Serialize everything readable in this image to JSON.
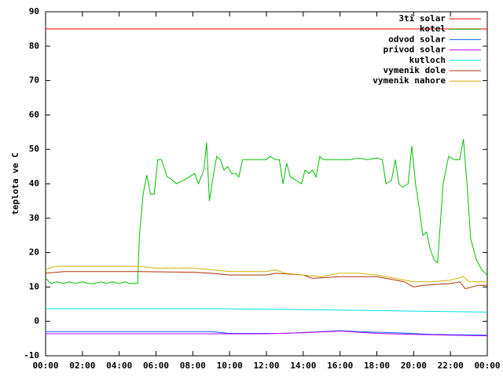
{
  "chart_data": {
    "type": "line",
    "y_label": "teplota ve C",
    "xlim": [
      0,
      24
    ],
    "xticks": [
      {
        "value": 0,
        "label": "00:00"
      },
      {
        "value": 2,
        "label": "02:00"
      },
      {
        "value": 4,
        "label": "04:00"
      },
      {
        "value": 6,
        "label": "06:00"
      },
      {
        "value": 8,
        "label": "08:00"
      },
      {
        "value": 10,
        "label": "10:00"
      },
      {
        "value": 12,
        "label": "12:00"
      },
      {
        "value": 14,
        "label": "14:00"
      },
      {
        "value": 16,
        "label": "16:00"
      },
      {
        "value": 18,
        "label": "18:00"
      },
      {
        "value": 20,
        "label": "20:00"
      },
      {
        "value": 22,
        "label": "22:00"
      },
      {
        "value": 24,
        "label": "00:00"
      }
    ],
    "ylim": [
      -10,
      90
    ],
    "yticks": [
      -10,
      0,
      10,
      20,
      30,
      40,
      50,
      60,
      70,
      80,
      90
    ],
    "legend": "top-right",
    "series": [
      {
        "name": "3ti solar",
        "color": "#ff0000",
        "x": [
          0,
          24
        ],
        "values": [
          85,
          85
        ]
      },
      {
        "name": "kotel",
        "color": "#00c000",
        "x": [
          0,
          0.3,
          0.6,
          1,
          1.3,
          1.6,
          2,
          2.3,
          2.6,
          3,
          3.3,
          3.6,
          4,
          4.3,
          4.6,
          5,
          5.1,
          5.3,
          5.5,
          5.7,
          5.9,
          6.1,
          6.3,
          6.6,
          6.8,
          7.1,
          7.5,
          7.8,
          8.1,
          8.3,
          8.6,
          8.75,
          8.9,
          9.1,
          9.3,
          9.5,
          9.7,
          9.9,
          10.1,
          10.3,
          10.5,
          10.7,
          11,
          11.5,
          12,
          12.2,
          12.5,
          12.7,
          12.9,
          13.1,
          13.3,
          13.6,
          13.9,
          14.1,
          14.3,
          14.5,
          14.7,
          14.9,
          15.1,
          15.5,
          16,
          16.5,
          17,
          17.5,
          18,
          18.3,
          18.5,
          18.8,
          19,
          19.2,
          19.4,
          19.7,
          19.9,
          20.1,
          20.3,
          20.5,
          20.7,
          20.9,
          21.1,
          21.3,
          21.6,
          21.9,
          22.2,
          22.5,
          22.7,
          22.9,
          23.1,
          23.4,
          23.7,
          24
        ],
        "values": [
          12.5,
          11,
          11.5,
          11,
          11.5,
          11,
          11.5,
          11,
          11,
          11.5,
          11,
          11.5,
          11,
          11.5,
          11,
          11,
          25,
          37,
          42.5,
          37,
          37,
          47,
          47,
          42,
          41.5,
          40,
          41,
          42,
          43,
          40,
          44,
          52,
          35,
          42,
          48,
          47,
          44,
          45,
          43,
          43,
          42,
          47,
          47,
          47,
          47,
          48,
          47,
          47,
          40,
          46,
          42,
          41,
          40,
          44,
          43,
          44,
          42,
          48,
          47,
          47,
          47,
          47,
          47.5,
          47,
          47.5,
          47,
          40,
          41,
          47,
          40,
          39,
          40,
          51,
          40,
          33,
          25,
          26,
          21,
          18,
          17,
          40,
          48,
          47,
          47,
          53,
          40,
          24,
          18,
          15,
          13.5
        ]
      },
      {
        "name": "odvod solar",
        "color": "#0060ff",
        "x": [
          0,
          9,
          10,
          13,
          15,
          16,
          17,
          19,
          21,
          24
        ],
        "values": [
          -3,
          -3,
          -3.5,
          -3.5,
          -3,
          -2.7,
          -3,
          -3.3,
          -3.8,
          -4
        ]
      },
      {
        "name": "privod solar",
        "color": "#c000ff",
        "x": [
          0,
          12,
          14,
          16,
          18,
          20,
          22,
          24
        ],
        "values": [
          -3.6,
          -3.6,
          -3.3,
          -2.8,
          -3.5,
          -3.8,
          -4,
          -4.2
        ]
      },
      {
        "name": "kutloch",
        "color": "#00e0e0",
        "x": [
          0,
          9,
          16,
          20,
          24
        ],
        "values": [
          3.7,
          3.7,
          3.3,
          3,
          2.7
        ]
      },
      {
        "name": "vymenik dole",
        "color": "#b03000",
        "x": [
          0,
          1,
          5,
          8,
          9,
          10,
          12,
          12.5,
          14,
          14.5,
          16,
          18,
          18.5,
          19.5,
          20,
          20.5,
          22,
          22.5,
          22.8,
          23.5,
          24
        ],
        "values": [
          14,
          14.5,
          14.5,
          14.3,
          14,
          13.5,
          13.5,
          14,
          13.5,
          12.5,
          13,
          13,
          12.5,
          11.5,
          10,
          10.5,
          11,
          11.5,
          9.5,
          10.5,
          10.5
        ]
      },
      {
        "name": "vymenik nahore",
        "color": "#d0b000",
        "x": [
          0,
          0.5,
          5,
          6,
          8,
          9,
          10,
          12,
          12.5,
          13,
          14,
          15,
          16,
          17,
          18,
          19,
          20,
          21,
          22,
          22.7,
          23,
          24
        ],
        "values": [
          15,
          16,
          16,
          15.5,
          15.5,
          15,
          14.5,
          14.5,
          15,
          14,
          13.5,
          13,
          14,
          14,
          13.5,
          12.5,
          11.5,
          11.5,
          12,
          13,
          11.5,
          11.5
        ]
      }
    ]
  }
}
